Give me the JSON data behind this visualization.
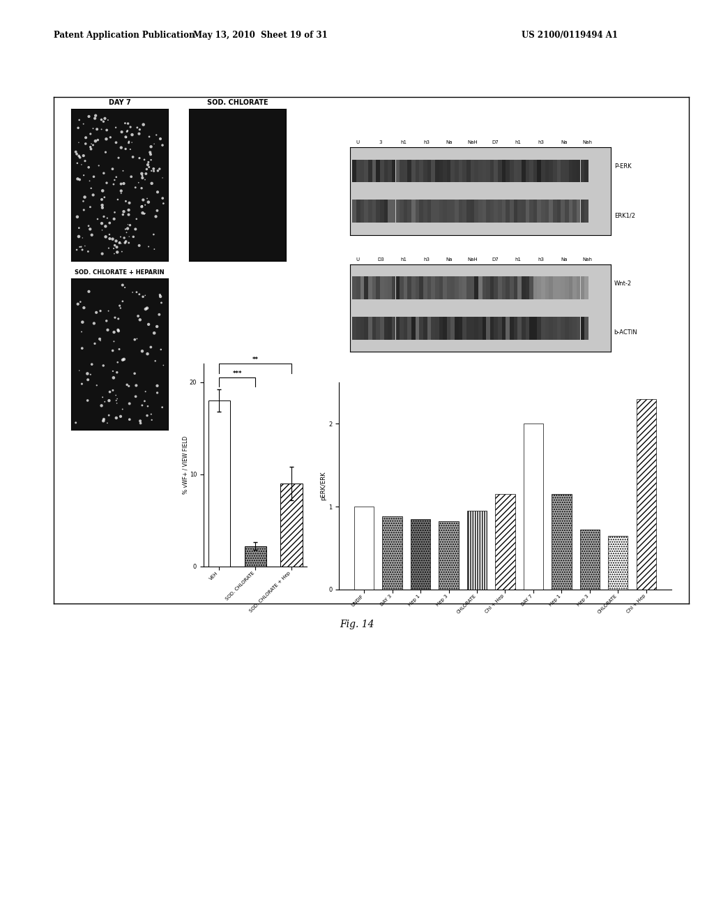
{
  "header_left": "Patent Application Publication",
  "header_mid": "May 13, 2010  Sheet 19 of 31",
  "header_right": "US 2100/0119494 A1",
  "fig_label": "Fig. 14",
  "bar_chart1": {
    "categories": [
      "VEH",
      "SOD. CHLORATE",
      "SOD. CHLORATE + Hep"
    ],
    "values": [
      18.0,
      2.2,
      9.0
    ],
    "errors": [
      1.2,
      0.4,
      1.8
    ],
    "colors": [
      "white",
      "#999999",
      "white"
    ],
    "hatch": [
      "",
      ".....",
      "////"
    ],
    "ylabel": "% vWF+ / VIEW FIELD",
    "ylim": [
      0,
      22
    ],
    "yticks": [
      0,
      10,
      20
    ],
    "sig1_text": "***",
    "sig2_text": "**"
  },
  "bar_chart2": {
    "categories": [
      "UNDIF",
      "DAY 3",
      "Hep 1",
      "Hep 3",
      "CHLORATE",
      "Chl + Hep",
      "DAY 7",
      "Hep 1",
      "Hep 3",
      "CHLORATE",
      "Chl + Hep"
    ],
    "values": [
      1.0,
      0.88,
      0.85,
      0.82,
      0.95,
      1.15,
      2.0,
      1.15,
      0.72,
      0.65,
      2.3
    ],
    "colors": [
      "white",
      "#aaaaaa",
      "#777777",
      "#aaaaaa",
      "white",
      "white",
      "white",
      "#aaaaaa",
      "#aaaaaa",
      "white",
      "white"
    ],
    "hatch": [
      "",
      ".....",
      ".....",
      ".....",
      "|||||",
      "////",
      "",
      ".....",
      ".....",
      ".....",
      "////"
    ],
    "ylabel": "pERK/ERK",
    "ylim": [
      0,
      2.5
    ],
    "yticks": [
      0,
      1,
      2
    ]
  },
  "western_blot1_labels": [
    "U",
    "3",
    "h1",
    "h3",
    "Na",
    "NaH",
    "D7",
    "h1",
    "h3",
    "Na",
    "Nah"
  ],
  "western_blot2_labels": [
    "U",
    "D3",
    "h1",
    "h3",
    "Na",
    "NaH",
    "D7",
    "h1",
    "h3",
    "Na",
    "Nah"
  ],
  "wb1_band_labels": [
    "P-ERK",
    "ERK1/2"
  ],
  "wb2_band_labels": [
    "Wnt-2",
    "b-ACTIN"
  ],
  "micro_titles": [
    "DAY 7",
    "SOD. CHLORATE",
    "SOD. CHLORATE + HEPARIN"
  ],
  "background_color": "#ffffff"
}
